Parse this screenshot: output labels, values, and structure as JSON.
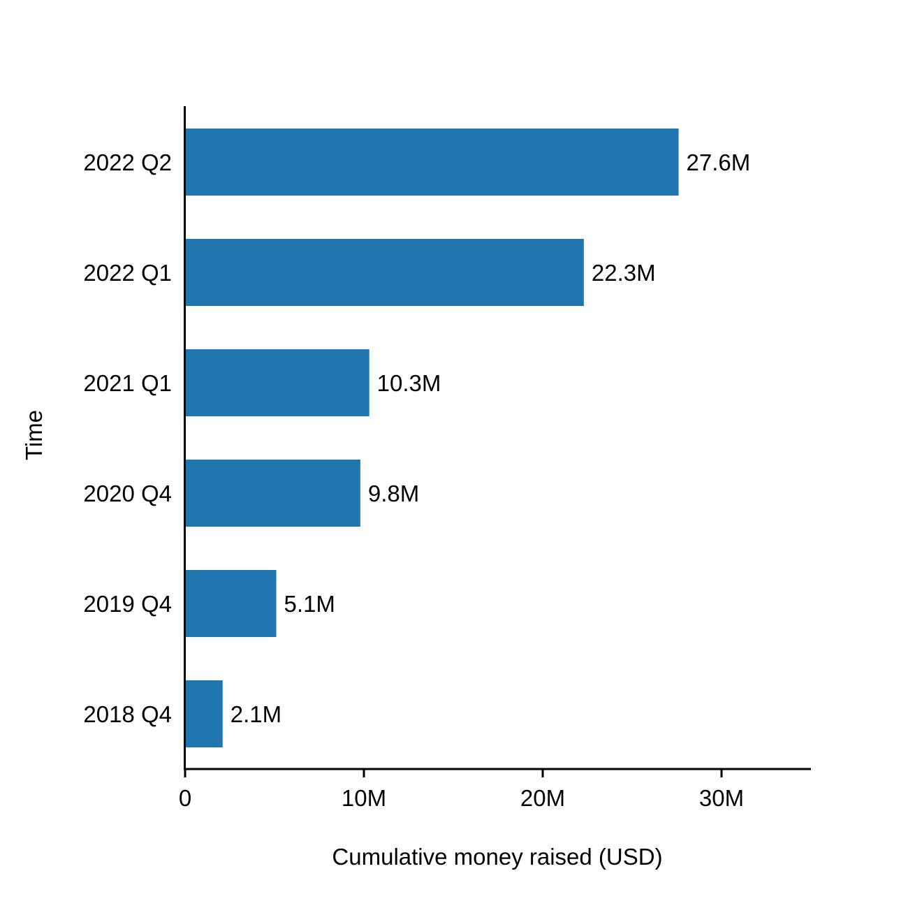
{
  "chart_data": {
    "type": "bar",
    "orientation": "horizontal",
    "categories": [
      "2022 Q2",
      "2022 Q1",
      "2021 Q1",
      "2020 Q4",
      "2019 Q4",
      "2018 Q4"
    ],
    "values": [
      27.6,
      22.3,
      10.3,
      9.8,
      5.1,
      2.1
    ],
    "value_labels": [
      "27.6M",
      "22.3M",
      "10.3M",
      "9.8M",
      "5.1M",
      "2.1M"
    ],
    "value_unit": "M USD",
    "xlabel": "Cumulative money raised (USD)",
    "ylabel": "Time",
    "xlim": [
      0,
      35
    ],
    "xticks": [
      0,
      10,
      20,
      30
    ],
    "xtick_labels": [
      "0",
      "10M",
      "20M",
      "30M"
    ],
    "bar_color": "#2176b0",
    "grid": false,
    "legend": "none"
  }
}
